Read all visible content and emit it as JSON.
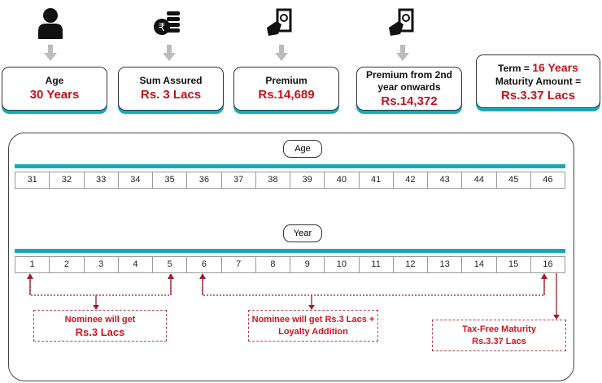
{
  "cards": [
    {
      "label": "Age",
      "value": "30 Years",
      "icon": "person-icon"
    },
    {
      "label": "Sum Assured",
      "value": "Rs. 3 Lacs",
      "icon": "rupee-coins-icon"
    },
    {
      "label": "Premium",
      "value": "Rs.14,689",
      "icon": "hand-cash-icon"
    },
    {
      "label": "Premium from 2nd year onwards",
      "value": "Rs.14,372",
      "icon": "hand-cash-icon"
    }
  ],
  "summary": {
    "term_label": "Term = ",
    "term_value": "16 Years",
    "maturity_label": "Maturity Amount =",
    "maturity_value": "Rs.3.37 Lacs"
  },
  "timeline": {
    "age_label": "Age",
    "ages": [
      "31",
      "32",
      "33",
      "34",
      "35",
      "36",
      "37",
      "38",
      "39",
      "40",
      "41",
      "42",
      "43",
      "44",
      "45",
      "46"
    ],
    "year_label": "Year",
    "years": [
      "1",
      "2",
      "3",
      "4",
      "5",
      "6",
      "7",
      "8",
      "9",
      "10",
      "11",
      "12",
      "13",
      "14",
      "15",
      "16"
    ]
  },
  "notes": [
    {
      "line1": "Nominee will get",
      "line2": "Rs.3 Lacs"
    },
    {
      "line1": "Nominee will get Rs.3 Lacs +",
      "line2": "Loyalty Addition"
    },
    {
      "line1": "Tax-Free Maturity",
      "line2": "Rs.3.37 Lacs"
    }
  ],
  "colors": {
    "accent": "#17a9b9",
    "highlight": "#c0141c",
    "connector": "#9b1b30"
  }
}
